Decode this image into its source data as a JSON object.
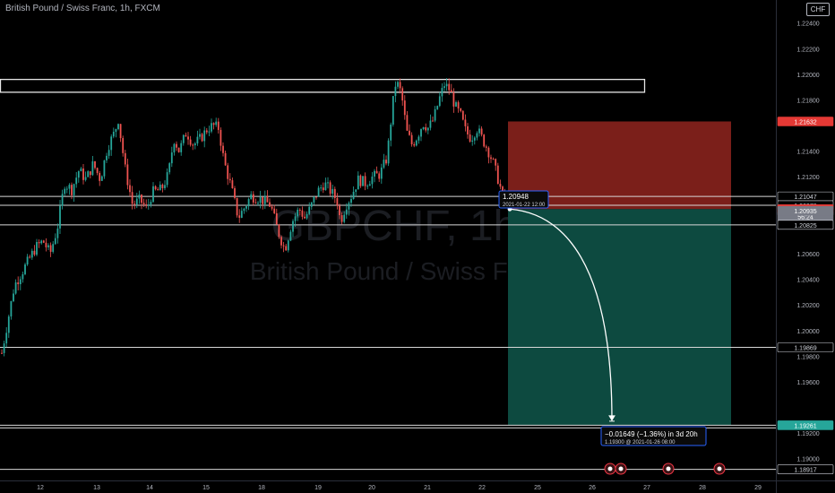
{
  "header": {
    "title": "British Pound / Swiss Franc, 1h, FXCM",
    "currency_badge": "CHF"
  },
  "watermark": {
    "symbol": "GBPCHF, 1h",
    "name": "British Pound / Swiss Franc"
  },
  "colors": {
    "background": "#000000",
    "bull": "#26a69a",
    "bear": "#ef5350",
    "stop_zone": "#7b1f1a",
    "target_zone": "#0d4a40",
    "axis_text": "#b2b5be",
    "tag_red": "#e53935",
    "tag_teal": "#26a69a",
    "accent_blue": "#2962ff"
  },
  "chart_data": {
    "type": "candlestick",
    "symbol": "GBPCHF",
    "interval": "1h",
    "x_ticks": [
      "12",
      "13",
      "14",
      "15",
      "18",
      "19",
      "20",
      "21",
      "22",
      "25",
      "26",
      "27",
      "28",
      "29"
    ],
    "y_ticks": [
      "1.22400",
      "1.22200",
      "1.22000",
      "1.21800",
      "1.21400",
      "1.21200",
      "1.20600",
      "1.20400",
      "1.20200",
      "1.20000",
      "1.19800",
      "1.19600",
      "1.19200",
      "1.19000"
    ],
    "y_range": [
      1.1883,
      1.2258
    ],
    "price_path": [
      [
        0,
        1.1975
      ],
      [
        8,
        1.2005
      ],
      [
        16,
        1.2035
      ],
      [
        24,
        1.2045
      ],
      [
        32,
        1.2055
      ],
      [
        40,
        1.2065
      ],
      [
        48,
        1.207
      ],
      [
        56,
        1.206
      ],
      [
        64,
        1.208
      ],
      [
        72,
        1.2115
      ],
      [
        80,
        1.211
      ],
      [
        88,
        1.2125
      ],
      [
        96,
        1.2118
      ],
      [
        104,
        1.213
      ],
      [
        112,
        1.2118
      ],
      [
        120,
        1.2143
      ],
      [
        128,
        1.2155
      ],
      [
        132,
        1.2165
      ],
      [
        140,
        1.2125
      ],
      [
        148,
        1.2098
      ],
      [
        156,
        1.2102
      ],
      [
        164,
        1.2095
      ],
      [
        170,
        1.2108
      ],
      [
        180,
        1.211
      ],
      [
        188,
        1.2122
      ],
      [
        194,
        1.215
      ],
      [
        200,
        1.214
      ],
      [
        208,
        1.2155
      ],
      [
        216,
        1.2145
      ],
      [
        224,
        1.215
      ],
      [
        232,
        1.2158
      ],
      [
        238,
        1.216
      ],
      [
        244,
        1.2158
      ],
      [
        250,
        1.2132
      ],
      [
        258,
        1.2112
      ],
      [
        266,
        1.2088
      ],
      [
        272,
        1.2095
      ],
      [
        280,
        1.2105
      ],
      [
        290,
        1.2103
      ],
      [
        302,
        1.2098
      ],
      [
        310,
        1.2078
      ],
      [
        318,
        1.2063
      ],
      [
        326,
        1.2085
      ],
      [
        334,
        1.2095
      ],
      [
        340,
        1.2088
      ],
      [
        346,
        1.2095
      ],
      [
        354,
        1.2108
      ],
      [
        362,
        1.2115
      ],
      [
        370,
        1.2108
      ],
      [
        376,
        1.2102
      ],
      [
        380,
        1.2085
      ],
      [
        386,
        1.2098
      ],
      [
        392,
        1.2105
      ],
      [
        400,
        1.2118
      ],
      [
        408,
        1.2115
      ],
      [
        416,
        1.212
      ],
      [
        424,
        1.2122
      ],
      [
        432,
        1.2135
      ],
      [
        438,
        1.2175
      ],
      [
        442,
        1.2195
      ],
      [
        448,
        1.2185
      ],
      [
        454,
        1.2155
      ],
      [
        460,
        1.2145
      ],
      [
        466,
        1.2152
      ],
      [
        472,
        1.2162
      ],
      [
        478,
        1.2158
      ],
      [
        484,
        1.2165
      ],
      [
        490,
        1.218
      ],
      [
        496,
        1.2192
      ],
      [
        502,
        1.2188
      ],
      [
        508,
        1.2175
      ],
      [
        514,
        1.2168
      ],
      [
        520,
        1.2155
      ],
      [
        526,
        1.215
      ],
      [
        532,
        1.2158
      ],
      [
        538,
        1.215
      ],
      [
        544,
        1.2142
      ],
      [
        550,
        1.2132
      ],
      [
        556,
        1.2118
      ],
      [
        562,
        1.2102
      ],
      [
        566,
        1.2096
      ]
    ],
    "annotations": {
      "resistance_zone": [
        1.2186,
        1.2196
      ],
      "horizontal_lines": [
        1.21047,
        1.20978,
        1.20825,
        1.19869,
        1.19261,
        1.1924,
        1.18917
      ],
      "entry_price": 1.20948,
      "stop_price": 1.21632,
      "target_price": 1.19261,
      "projection_end_price": 1.193
    }
  },
  "price_tags": [
    {
      "price": 1.21632,
      "label": "1.21632",
      "style": "red"
    },
    {
      "price": 1.21047,
      "label": "1.21047",
      "style": "plain"
    },
    {
      "price": 1.20978,
      "label": "1.20978",
      "style": "plain"
    },
    {
      "price": 1.20948,
      "label": "1.20948",
      "style": "red"
    },
    {
      "price": 1.2089,
      "label": "56:24",
      "style": "gray"
    },
    {
      "price": 1.20935,
      "label": "1.20935",
      "style": "gray"
    },
    {
      "price": 1.20825,
      "label": "1.20825",
      "style": "plain"
    },
    {
      "price": 1.19869,
      "label": "1.19869",
      "style": "plain"
    },
    {
      "price": 1.19261,
      "label": "1.19261",
      "style": "teal"
    },
    {
      "price": 1.18917,
      "label": "1.18917",
      "style": "plain"
    }
  ],
  "projection": {
    "start_label_price": "1.20948",
    "start_label_time": "2021-01-22 12:00",
    "result_line1": "−0.01649 (−1.36%) in 3d 20h",
    "result_line2": "1.19300 @ 2021-01-26  08:00"
  }
}
